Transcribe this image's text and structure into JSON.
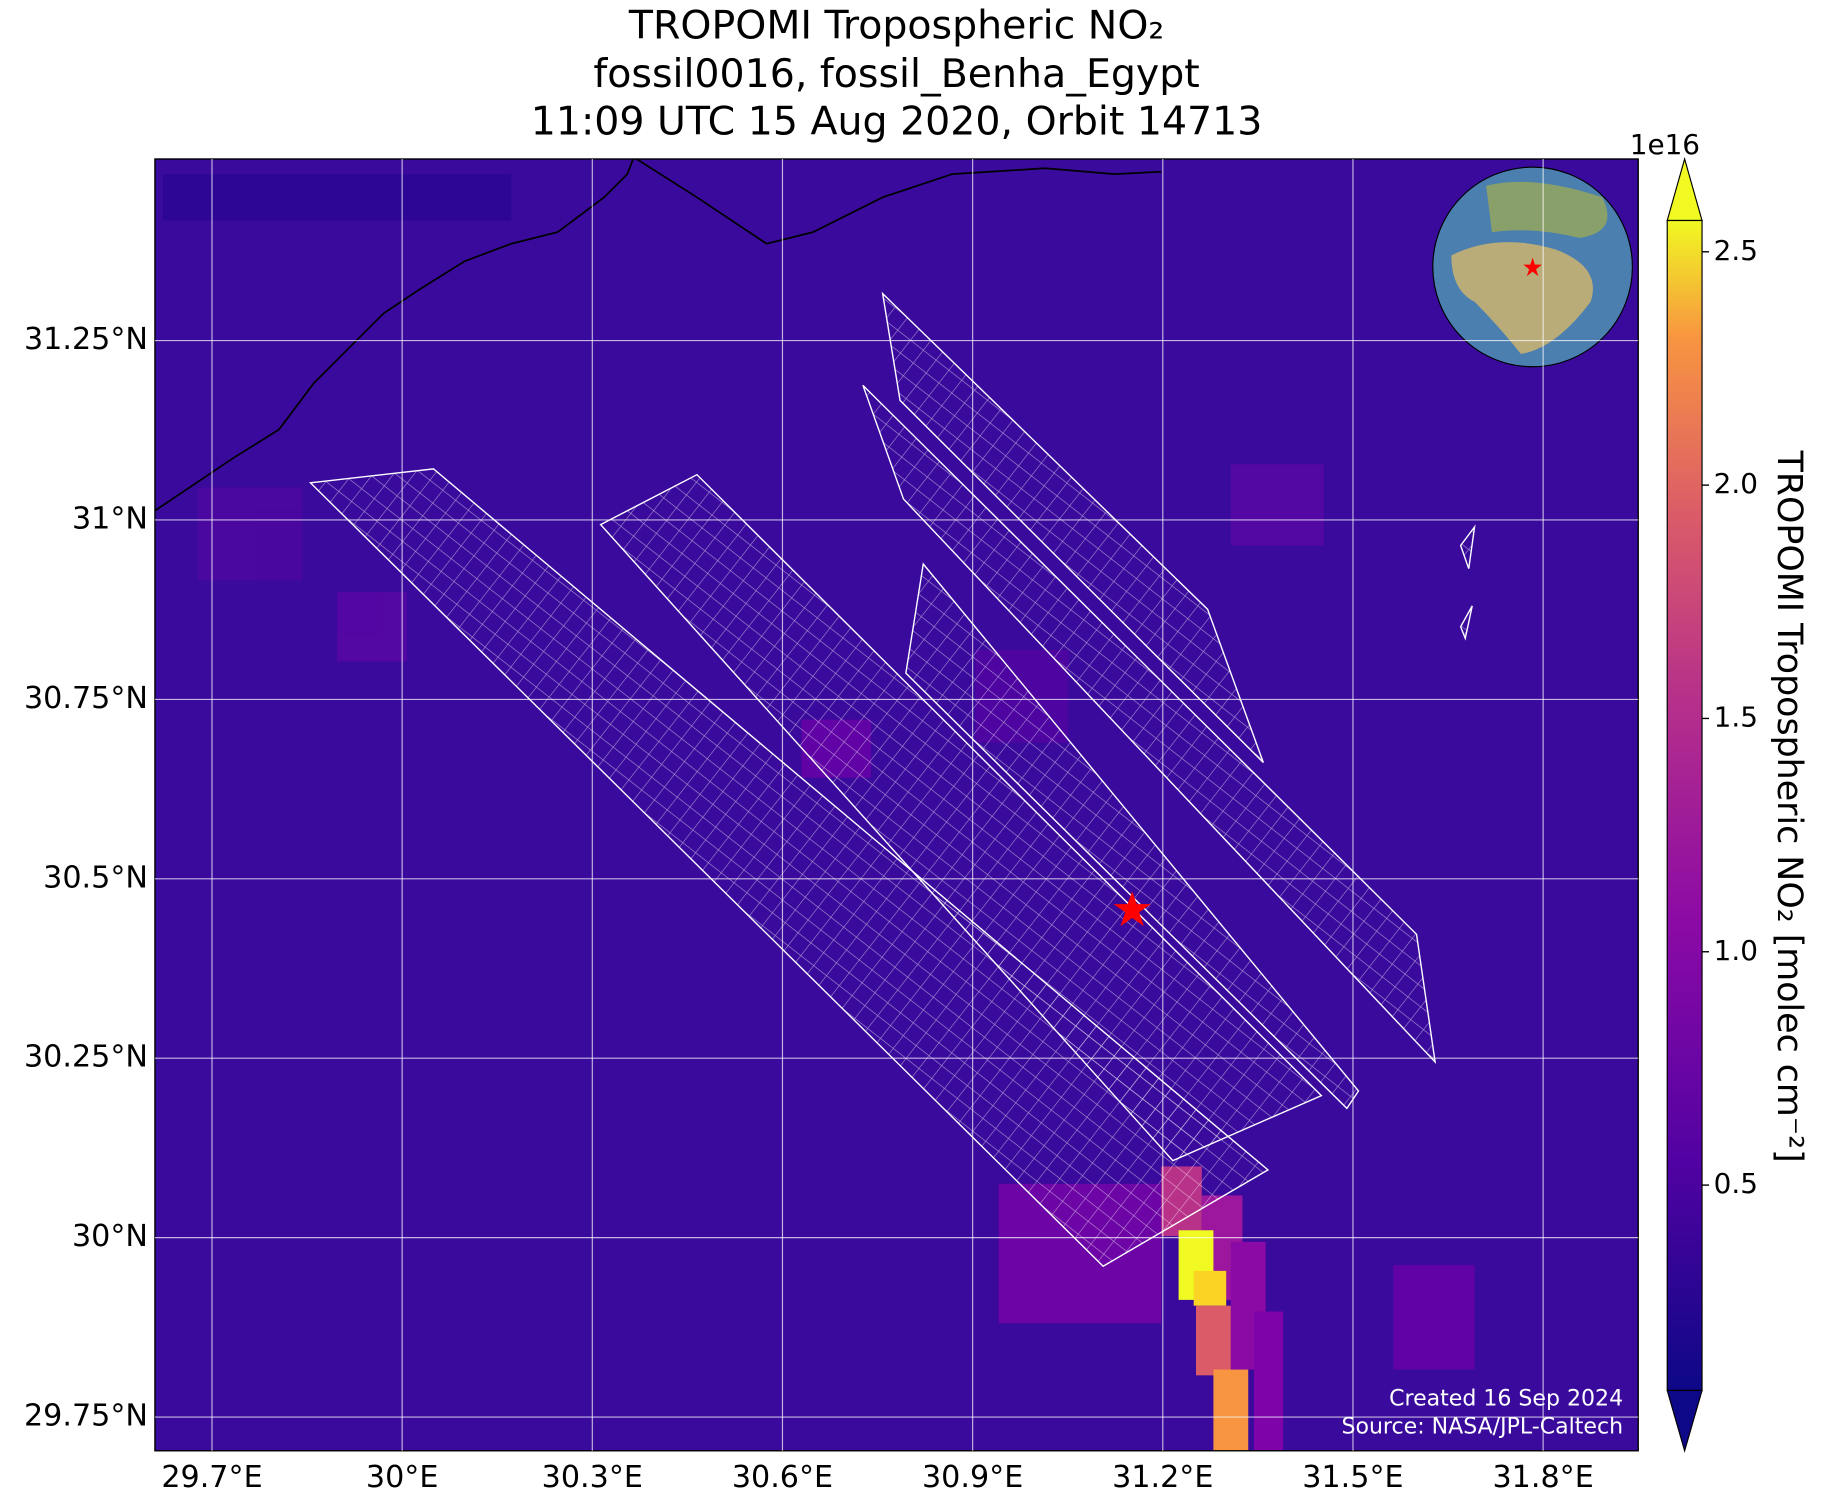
{
  "chart_data": {
    "type": "map",
    "title": [
      "TROPOMI Tropospheric NO₂",
      "fossil0016, fossil_Benha_Egypt",
      "11:09 UTC 15 Aug 2020, Orbit 14713"
    ],
    "xlim": [
      29.61,
      31.95
    ],
    "ylim": [
      29.703,
      31.503
    ],
    "xticks": [
      {
        "value": 29.7,
        "label": "29.7°E"
      },
      {
        "value": 30.0,
        "label": "30°E"
      },
      {
        "value": 30.3,
        "label": "30.3°E"
      },
      {
        "value": 30.6,
        "label": "30.6°E"
      },
      {
        "value": 30.9,
        "label": "30.9°E"
      },
      {
        "value": 31.2,
        "label": "31.2°E"
      },
      {
        "value": 31.5,
        "label": "31.5°E"
      },
      {
        "value": 31.8,
        "label": "31.8°E"
      }
    ],
    "yticks": [
      {
        "value": 29.75,
        "label": "29.75°N"
      },
      {
        "value": 30.0,
        "label": "30°N"
      },
      {
        "value": 30.25,
        "label": "30.25°N"
      },
      {
        "value": 30.5,
        "label": "30.5°N"
      },
      {
        "value": 30.75,
        "label": "30.75°N"
      },
      {
        "value": 31.0,
        "label": "31°N"
      },
      {
        "value": 31.25,
        "label": "31.25°N"
      }
    ],
    "grid": true,
    "colorbar": {
      "label": "TROPOMI Tropospheric NO₂ [molec cm⁻²]",
      "exponent": "1e16",
      "lim": [
        0.06,
        2.567
      ],
      "ticks": [
        0.5,
        {
          "value": 1.0,
          "label": "1.0"
        },
        1.5,
        {
          "value": 2.0,
          "label": "2.0"
        },
        2.5
      ]
    },
    "annotations": [
      "Created 16 Sep 2024",
      "Source: NASA/JPL-Caltech"
    ]
  }
}
